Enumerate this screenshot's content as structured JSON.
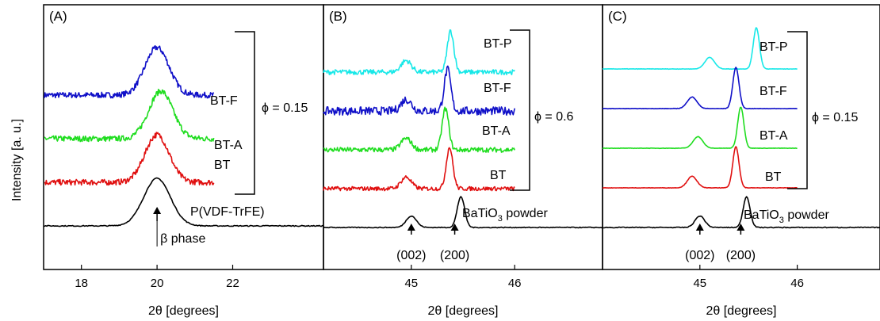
{
  "ylabel": "Intensity [a. u.]",
  "chart_data": [
    {
      "type": "line",
      "panel_label": "(A)",
      "xlabel": "2θ [degrees]",
      "xlim": [
        17,
        24.4
      ],
      "x_ticks": [
        18,
        20,
        22
      ],
      "x_tick_labels": [
        "18",
        "20",
        "22"
      ],
      "phi_label": "ϕ = 0.15",
      "series": [
        {
          "name": "BT-F",
          "color": "#1010c8",
          "peak_x": 20.0,
          "offset": 3,
          "amp": 1.0,
          "width": 0.45,
          "x_end": 21.5,
          "noise": 0.12
        },
        {
          "name": "BT-A",
          "color": "#20dd20",
          "peak_x": 20.1,
          "offset": 2,
          "amp": 1.0,
          "width": 0.45,
          "x_end": 21.5,
          "noise": 0.12
        },
        {
          "name": "BT",
          "color": "#e01010",
          "peak_x": 20.0,
          "offset": 1,
          "amp": 1.0,
          "width": 0.45,
          "x_end": 21.5,
          "noise": 0.12
        },
        {
          "name": "P(VDF-TrFE)",
          "color": "#000000",
          "peak_x": 20.0,
          "offset": 0,
          "amp": 1.0,
          "width": 0.5,
          "x_end": 24.4,
          "noise": 0.02
        }
      ],
      "annotations": [
        {
          "text": "β phase",
          "x": 20.0
        }
      ]
    },
    {
      "type": "line",
      "panel_label": "(B)",
      "xlabel": "2θ [degrees]",
      "xlim": [
        44.15,
        46.85
      ],
      "x_ticks": [
        45,
        46
      ],
      "x_tick_labels": [
        "45",
        "46"
      ],
      "phi_label": "ϕ = 0.6",
      "series": [
        {
          "name": "BT-P",
          "color": "#18e8e8",
          "peak1": 44.95,
          "peak2": 45.38,
          "offset": 4,
          "x_end": 46.0,
          "noise": 0.12
        },
        {
          "name": "BT-F",
          "color": "#1010c8",
          "peak1": 44.95,
          "peak2": 45.35,
          "offset": 3,
          "x_end": 46.0,
          "noise": 0.2
        },
        {
          "name": "BT-A",
          "color": "#20dd20",
          "peak1": 44.95,
          "peak2": 45.33,
          "offset": 2,
          "x_end": 46.0,
          "noise": 0.12
        },
        {
          "name": "BT",
          "color": "#e01010",
          "peak1": 44.95,
          "peak2": 45.37,
          "offset": 1,
          "x_end": 46.0,
          "noise": 0.1
        },
        {
          "name": "BaTiO3 powder",
          "color": "#000000",
          "peak1": 45.0,
          "peak2": 45.48,
          "offset": 0,
          "x_end": 46.85,
          "noise": 0.02
        }
      ],
      "annotations": [
        {
          "text": "(002)",
          "x": 45.0
        },
        {
          "text": "(200)",
          "x": 45.42
        }
      ]
    },
    {
      "type": "line",
      "panel_label": "(C)",
      "xlabel": "2θ [degrees]",
      "xlim": [
        44.0,
        46.85
      ],
      "x_ticks": [
        45,
        46
      ],
      "x_tick_labels": [
        "45",
        "46"
      ],
      "phi_label": "ϕ = 0.15",
      "series": [
        {
          "name": "BT-P",
          "color": "#18e8e8",
          "peak1": 45.1,
          "peak2": 45.58,
          "offset": 4,
          "x_end": 46.0,
          "noise": 0.01
        },
        {
          "name": "BT-F",
          "color": "#1010c8",
          "peak1": 44.92,
          "peak2": 45.37,
          "offset": 3,
          "x_end": 46.0,
          "noise": 0.01
        },
        {
          "name": "BT-A",
          "color": "#20dd20",
          "peak1": 44.98,
          "peak2": 45.42,
          "offset": 2,
          "x_end": 46.0,
          "noise": 0.01
        },
        {
          "name": "BT",
          "color": "#e01010",
          "peak1": 44.92,
          "peak2": 45.37,
          "offset": 1,
          "x_end": 46.0,
          "noise": 0.01
        },
        {
          "name": "BaTiO3 powder",
          "color": "#000000",
          "peak1": 45.0,
          "peak2": 45.48,
          "offset": 0,
          "x_end": 46.85,
          "noise": 0.02
        }
      ],
      "annotations": [
        {
          "text": "(002)",
          "x": 45.0
        },
        {
          "text": "(200)",
          "x": 45.42
        }
      ]
    }
  ]
}
